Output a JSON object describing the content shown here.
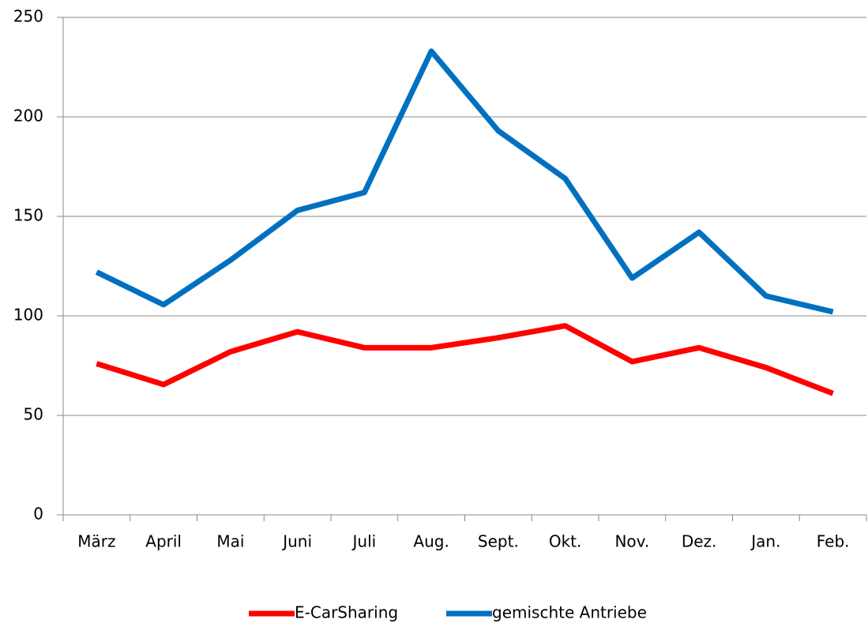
{
  "chart_data": {
    "type": "line",
    "categories": [
      "März",
      "April",
      "Mai",
      "Juni",
      "Juli",
      "Aug.",
      "Sept.",
      "Okt.",
      "Nov.",
      "Dez.",
      "Jan.",
      "Feb."
    ],
    "series": [
      {
        "name": "E-CarSharing",
        "color": "#ff0000",
        "values": [
          76,
          65.5,
          82,
          92,
          84,
          84,
          89,
          95,
          77,
          84,
          74,
          61
        ]
      },
      {
        "name": "gemischte Antriebe",
        "color": "#0070c0",
        "values": [
          122,
          105.6,
          128,
          153,
          162,
          233,
          193,
          169,
          119,
          142,
          110,
          102
        ]
      }
    ],
    "ylim": [
      0,
      250
    ],
    "yticks": [
      0,
      50,
      100,
      150,
      200,
      250
    ],
    "grid": true,
    "legend": "bottom"
  }
}
